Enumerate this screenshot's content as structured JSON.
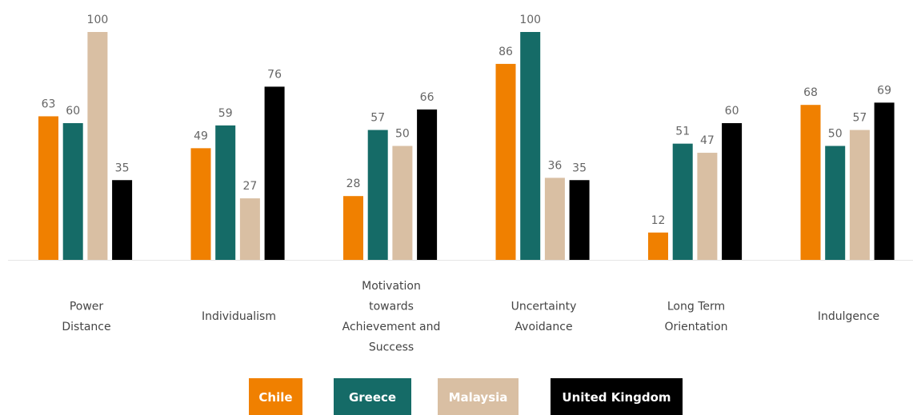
{
  "chart_data": {
    "type": "bar",
    "title": "",
    "xlabel": "",
    "ylabel": "",
    "ylim": [
      0,
      100
    ],
    "grid": false,
    "legend_position": "bottom",
    "categories": [
      [
        "Power",
        "Distance"
      ],
      [
        "Individualism"
      ],
      [
        "Motivation",
        "towards",
        "Achievement and",
        "Success"
      ],
      [
        "Uncertainty",
        "Avoidance"
      ],
      [
        "Long Term",
        "Orientation"
      ],
      [
        "Indulgence"
      ]
    ],
    "series": [
      {
        "name": "Chile",
        "color": "#f08000",
        "values": [
          63,
          49,
          28,
          86,
          12,
          68
        ]
      },
      {
        "name": "Greece",
        "color": "#156b67",
        "values": [
          60,
          59,
          57,
          100,
          51,
          50
        ]
      },
      {
        "name": "Malaysia",
        "color": "#d9bfa3",
        "values": [
          100,
          27,
          50,
          36,
          47,
          57
        ]
      },
      {
        "name": "United Kingdom",
        "color": "#000000",
        "values": [
          35,
          76,
          66,
          35,
          60,
          69
        ]
      }
    ],
    "axis_line_color": "#e6e6e6"
  }
}
